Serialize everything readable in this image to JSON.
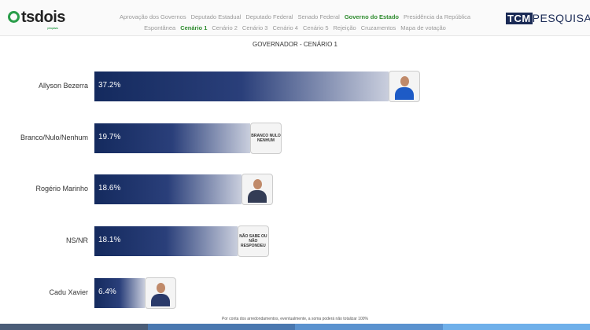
{
  "header": {
    "logo": "tsdois",
    "logo_sub": "pesquisas",
    "brand_box": "TCM",
    "brand_text": "PESQUISA",
    "nav_row1": [
      {
        "label": "Aprovação dos Governos",
        "active": false
      },
      {
        "label": "Deputado Estadual",
        "active": false
      },
      {
        "label": "Deputado Federal",
        "active": false
      },
      {
        "label": "Senado Federal",
        "active": false
      },
      {
        "label": "Governo do Estado",
        "active": true
      },
      {
        "label": "Presidência da República",
        "active": false
      }
    ],
    "nav_row2": [
      {
        "label": "Espontânea",
        "active": false
      },
      {
        "label": "Cenário 1",
        "active": true
      },
      {
        "label": "Cenário 2",
        "active": false
      },
      {
        "label": "Cenário 3",
        "active": false
      },
      {
        "label": "Cenário 4",
        "active": false
      },
      {
        "label": "Cenário 5",
        "active": false
      },
      {
        "label": "Rejeição",
        "active": false
      },
      {
        "label": "Cruzamentos",
        "active": false
      },
      {
        "label": "Mapa de votação",
        "active": false
      }
    ]
  },
  "chart_data": {
    "type": "bar",
    "title": "GOVERNADOR - CENÁRIO 1",
    "categories": [
      "Allyson Bezerra",
      "Branco/Nulo/Nenhum",
      "Rogério Marinho",
      "NS/NR",
      "Cadu Xavier"
    ],
    "values": [
      37.2,
      19.7,
      18.6,
      18.1,
      6.4
    ],
    "value_labels": [
      "37.2%",
      "19.7%",
      "18.6%",
      "18.1%",
      "6.4%"
    ],
    "badges": [
      "",
      "BRANCO NULO NENHUM",
      "",
      "NÃO SABE OU NÃO RESPONDEU",
      ""
    ],
    "colors": {
      "bar_start": "#142a5e",
      "bar_end": "#c9cedd"
    }
  },
  "note": "Por conta dos arredondamentos, eventualmente, a soma poderá não totalizar 100%",
  "footer_colors": [
    "#4b5d78",
    "#4a78b0",
    "#5a92cf",
    "#6fb0ea"
  ]
}
